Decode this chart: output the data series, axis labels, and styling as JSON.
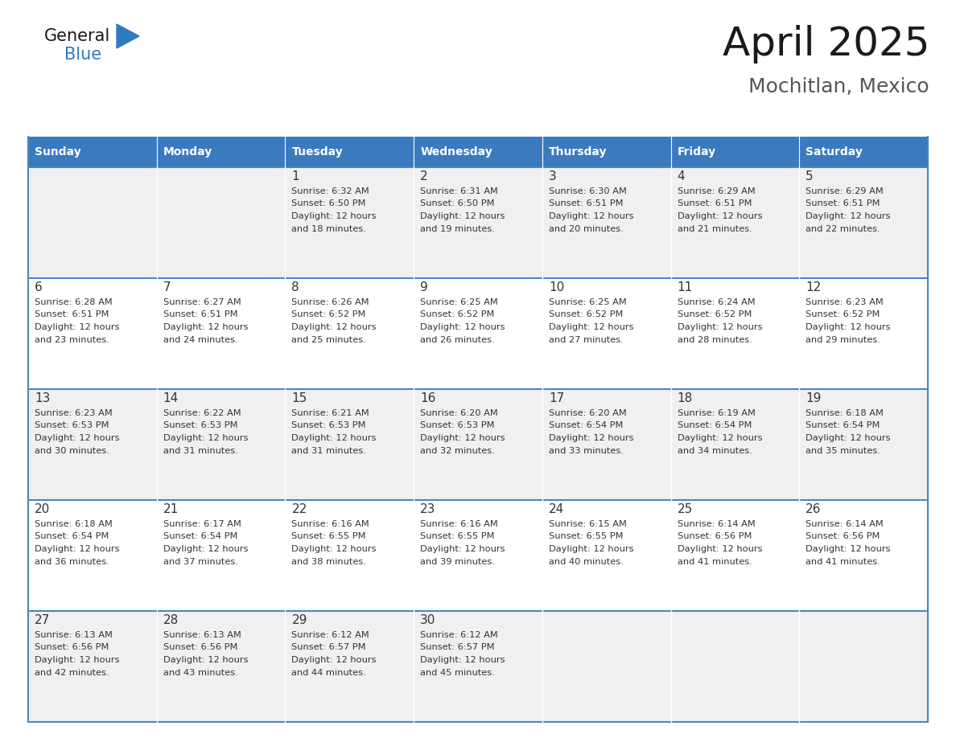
{
  "title": "April 2025",
  "subtitle": "Mochitlan, Mexico",
  "days_of_week": [
    "Sunday",
    "Monday",
    "Tuesday",
    "Wednesday",
    "Thursday",
    "Friday",
    "Saturday"
  ],
  "header_bg": "#3a7abf",
  "header_text": "#ffffff",
  "row_bg_even": "#f0f0f0",
  "row_bg_odd": "#ffffff",
  "text_color": "#333333",
  "border_color": "#4a86c0",
  "logo_black": "#1a1a1a",
  "logo_blue": "#2e7abf",
  "title_color": "#1a1a1a",
  "subtitle_color": "#555555",
  "weeks": [
    {
      "days": [
        {
          "day": "",
          "sunrise": "",
          "sunset": "",
          "daylight": ""
        },
        {
          "day": "",
          "sunrise": "",
          "sunset": "",
          "daylight": ""
        },
        {
          "day": "1",
          "sunrise": "Sunrise: 6:32 AM",
          "sunset": "Sunset: 6:50 PM",
          "daylight": "Daylight: 12 hours\nand 18 minutes."
        },
        {
          "day": "2",
          "sunrise": "Sunrise: 6:31 AM",
          "sunset": "Sunset: 6:50 PM",
          "daylight": "Daylight: 12 hours\nand 19 minutes."
        },
        {
          "day": "3",
          "sunrise": "Sunrise: 6:30 AM",
          "sunset": "Sunset: 6:51 PM",
          "daylight": "Daylight: 12 hours\nand 20 minutes."
        },
        {
          "day": "4",
          "sunrise": "Sunrise: 6:29 AM",
          "sunset": "Sunset: 6:51 PM",
          "daylight": "Daylight: 12 hours\nand 21 minutes."
        },
        {
          "day": "5",
          "sunrise": "Sunrise: 6:29 AM",
          "sunset": "Sunset: 6:51 PM",
          "daylight": "Daylight: 12 hours\nand 22 minutes."
        }
      ]
    },
    {
      "days": [
        {
          "day": "6",
          "sunrise": "Sunrise: 6:28 AM",
          "sunset": "Sunset: 6:51 PM",
          "daylight": "Daylight: 12 hours\nand 23 minutes."
        },
        {
          "day": "7",
          "sunrise": "Sunrise: 6:27 AM",
          "sunset": "Sunset: 6:51 PM",
          "daylight": "Daylight: 12 hours\nand 24 minutes."
        },
        {
          "day": "8",
          "sunrise": "Sunrise: 6:26 AM",
          "sunset": "Sunset: 6:52 PM",
          "daylight": "Daylight: 12 hours\nand 25 minutes."
        },
        {
          "day": "9",
          "sunrise": "Sunrise: 6:25 AM",
          "sunset": "Sunset: 6:52 PM",
          "daylight": "Daylight: 12 hours\nand 26 minutes."
        },
        {
          "day": "10",
          "sunrise": "Sunrise: 6:25 AM",
          "sunset": "Sunset: 6:52 PM",
          "daylight": "Daylight: 12 hours\nand 27 minutes."
        },
        {
          "day": "11",
          "sunrise": "Sunrise: 6:24 AM",
          "sunset": "Sunset: 6:52 PM",
          "daylight": "Daylight: 12 hours\nand 28 minutes."
        },
        {
          "day": "12",
          "sunrise": "Sunrise: 6:23 AM",
          "sunset": "Sunset: 6:52 PM",
          "daylight": "Daylight: 12 hours\nand 29 minutes."
        }
      ]
    },
    {
      "days": [
        {
          "day": "13",
          "sunrise": "Sunrise: 6:23 AM",
          "sunset": "Sunset: 6:53 PM",
          "daylight": "Daylight: 12 hours\nand 30 minutes."
        },
        {
          "day": "14",
          "sunrise": "Sunrise: 6:22 AM",
          "sunset": "Sunset: 6:53 PM",
          "daylight": "Daylight: 12 hours\nand 31 minutes."
        },
        {
          "day": "15",
          "sunrise": "Sunrise: 6:21 AM",
          "sunset": "Sunset: 6:53 PM",
          "daylight": "Daylight: 12 hours\nand 31 minutes."
        },
        {
          "day": "16",
          "sunrise": "Sunrise: 6:20 AM",
          "sunset": "Sunset: 6:53 PM",
          "daylight": "Daylight: 12 hours\nand 32 minutes."
        },
        {
          "day": "17",
          "sunrise": "Sunrise: 6:20 AM",
          "sunset": "Sunset: 6:54 PM",
          "daylight": "Daylight: 12 hours\nand 33 minutes."
        },
        {
          "day": "18",
          "sunrise": "Sunrise: 6:19 AM",
          "sunset": "Sunset: 6:54 PM",
          "daylight": "Daylight: 12 hours\nand 34 minutes."
        },
        {
          "day": "19",
          "sunrise": "Sunrise: 6:18 AM",
          "sunset": "Sunset: 6:54 PM",
          "daylight": "Daylight: 12 hours\nand 35 minutes."
        }
      ]
    },
    {
      "days": [
        {
          "day": "20",
          "sunrise": "Sunrise: 6:18 AM",
          "sunset": "Sunset: 6:54 PM",
          "daylight": "Daylight: 12 hours\nand 36 minutes."
        },
        {
          "day": "21",
          "sunrise": "Sunrise: 6:17 AM",
          "sunset": "Sunset: 6:54 PM",
          "daylight": "Daylight: 12 hours\nand 37 minutes."
        },
        {
          "day": "22",
          "sunrise": "Sunrise: 6:16 AM",
          "sunset": "Sunset: 6:55 PM",
          "daylight": "Daylight: 12 hours\nand 38 minutes."
        },
        {
          "day": "23",
          "sunrise": "Sunrise: 6:16 AM",
          "sunset": "Sunset: 6:55 PM",
          "daylight": "Daylight: 12 hours\nand 39 minutes."
        },
        {
          "day": "24",
          "sunrise": "Sunrise: 6:15 AM",
          "sunset": "Sunset: 6:55 PM",
          "daylight": "Daylight: 12 hours\nand 40 minutes."
        },
        {
          "day": "25",
          "sunrise": "Sunrise: 6:14 AM",
          "sunset": "Sunset: 6:56 PM",
          "daylight": "Daylight: 12 hours\nand 41 minutes."
        },
        {
          "day": "26",
          "sunrise": "Sunrise: 6:14 AM",
          "sunset": "Sunset: 6:56 PM",
          "daylight": "Daylight: 12 hours\nand 41 minutes."
        }
      ]
    },
    {
      "days": [
        {
          "day": "27",
          "sunrise": "Sunrise: 6:13 AM",
          "sunset": "Sunset: 6:56 PM",
          "daylight": "Daylight: 12 hours\nand 42 minutes."
        },
        {
          "day": "28",
          "sunrise": "Sunrise: 6:13 AM",
          "sunset": "Sunset: 6:56 PM",
          "daylight": "Daylight: 12 hours\nand 43 minutes."
        },
        {
          "day": "29",
          "sunrise": "Sunrise: 6:12 AM",
          "sunset": "Sunset: 6:57 PM",
          "daylight": "Daylight: 12 hours\nand 44 minutes."
        },
        {
          "day": "30",
          "sunrise": "Sunrise: 6:12 AM",
          "sunset": "Sunset: 6:57 PM",
          "daylight": "Daylight: 12 hours\nand 45 minutes."
        },
        {
          "day": "",
          "sunrise": "",
          "sunset": "",
          "daylight": ""
        },
        {
          "day": "",
          "sunrise": "",
          "sunset": "",
          "daylight": ""
        },
        {
          "day": "",
          "sunrise": "",
          "sunset": "",
          "daylight": ""
        }
      ]
    }
  ]
}
